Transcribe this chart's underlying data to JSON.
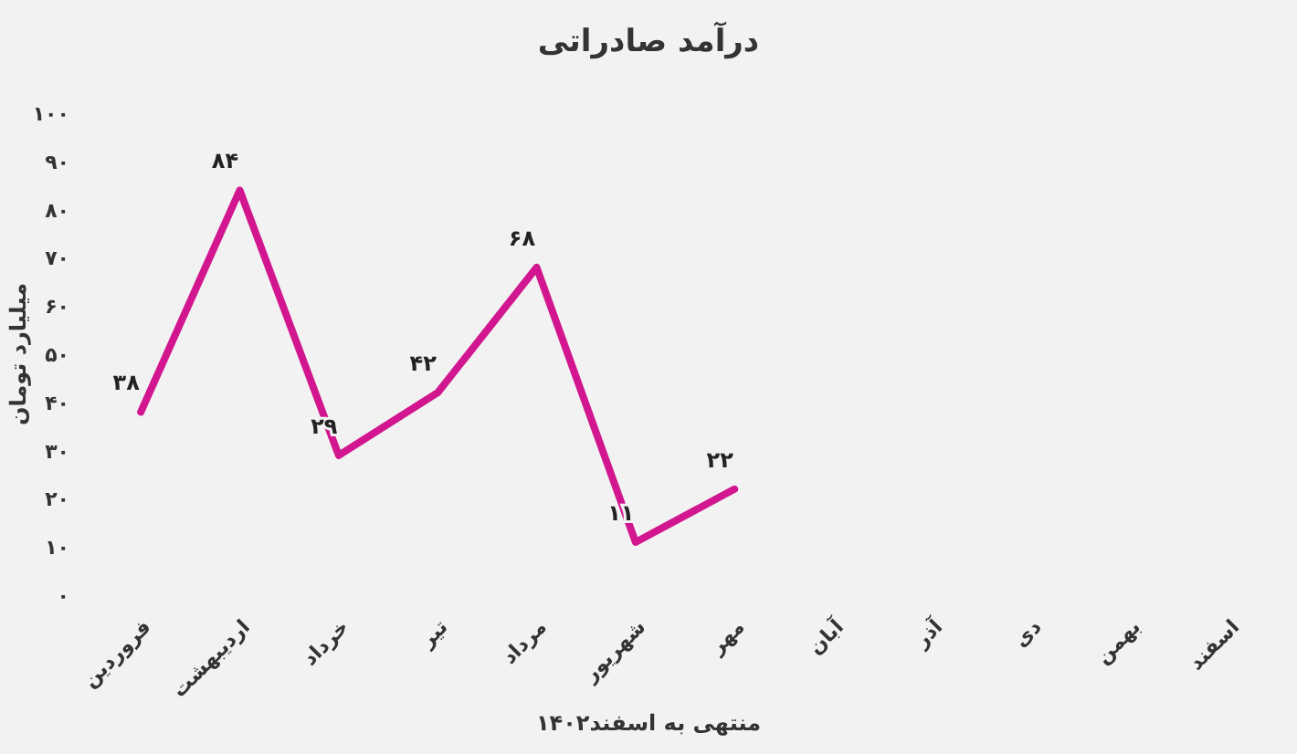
{
  "chart_data": {
    "type": "line",
    "title": "درآمد صادراتی",
    "xlabel": "منتهی به اسفند۱۴۰۲",
    "ylabel": "میلیارد تومان",
    "categories": [
      "فروردین",
      "اردیبهشت",
      "خرداد",
      "تیر",
      "مرداد",
      "شهریور",
      "مهر",
      "آبان",
      "آذر",
      "دی",
      "بهمن",
      "اسفند"
    ],
    "values": [
      38,
      84,
      29,
      42,
      68,
      11,
      22,
      null,
      null,
      null,
      null,
      null
    ],
    "value_labels": [
      "۳۸",
      "۸۴",
      "۲۹",
      "۴۲",
      "۶۸",
      "۱۱",
      "۲۲",
      null,
      null,
      null,
      null,
      null
    ],
    "color": "#d1168f",
    "ylim": [
      0,
      100
    ],
    "yticks": [
      {
        "value": 0,
        "label": "۰"
      },
      {
        "value": 10,
        "label": "۱۰"
      },
      {
        "value": 20,
        "label": "۲۰"
      },
      {
        "value": 30,
        "label": "۳۰"
      },
      {
        "value": 40,
        "label": "۴۰"
      },
      {
        "value": 50,
        "label": "۵۰"
      },
      {
        "value": 60,
        "label": "۶۰"
      },
      {
        "value": 70,
        "label": "۷۰"
      },
      {
        "value": 80,
        "label": "۸۰"
      },
      {
        "value": 90,
        "label": "۹۰"
      },
      {
        "value": 100,
        "label": "۱۰۰"
      }
    ]
  }
}
